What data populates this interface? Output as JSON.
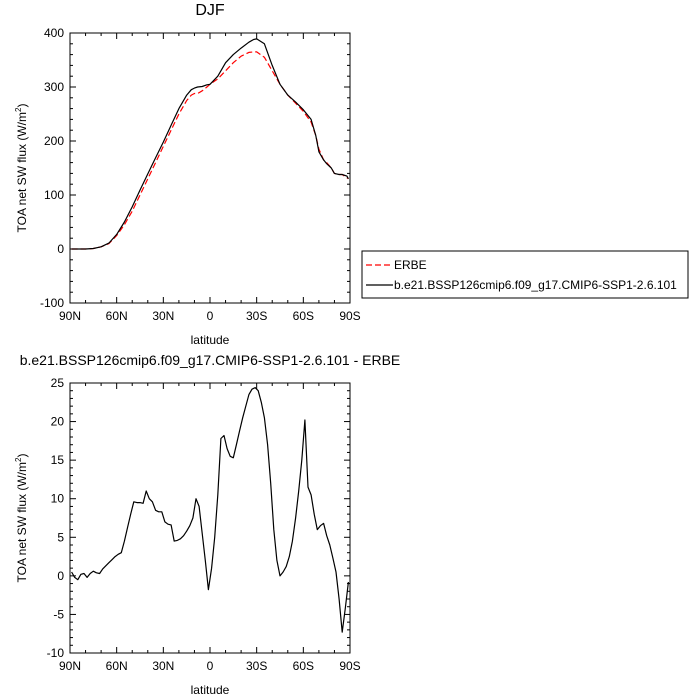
{
  "chart_data": [
    {
      "type": "line",
      "title": "DJF",
      "xlabel": "latitude",
      "ylabel": "TOA net SW flux (W/m²)",
      "ylabel_main": "TOA net SW flux (W/m",
      "ylabel_sup": "2",
      "ylabel_tail": ")",
      "xlim": [
        90,
        -90
      ],
      "ylim": [
        -100,
        400
      ],
      "xticks": [
        90,
        60,
        30,
        0,
        -30,
        -60,
        -90
      ],
      "xtick_labels": [
        "90N",
        "60N",
        "30N",
        "0",
        "30S",
        "60S",
        "90S"
      ],
      "yticks": [
        -100,
        0,
        100,
        200,
        300,
        400
      ],
      "ytick_labels": [
        "-100",
        "0",
        "100",
        "200",
        "300",
        "400"
      ],
      "legend_position": "right",
      "series": [
        {
          "name": "ERBE",
          "color": "#ff0000",
          "dash": "dashed",
          "x": [
            89,
            85,
            80,
            75,
            70,
            65,
            60,
            55,
            50,
            45,
            40,
            35,
            30,
            25,
            20,
            15,
            12,
            10,
            8,
            5,
            2,
            0,
            -5,
            -10,
            -15,
            -20,
            -25,
            -28,
            -30,
            -35,
            -40,
            -45,
            -50,
            -55,
            -60,
            -65,
            -68,
            -70,
            -73,
            -75,
            -78,
            -80,
            -83,
            -85,
            -88,
            -89
          ],
          "y": [
            0,
            0,
            0,
            1,
            4,
            10,
            25,
            45,
            70,
            100,
            130,
            160,
            190,
            220,
            250,
            275,
            285,
            288,
            288,
            293,
            300,
            305,
            315,
            330,
            345,
            357,
            364,
            365,
            365,
            355,
            330,
            305,
            285,
            270,
            255,
            235,
            210,
            185,
            165,
            160,
            150,
            140,
            138,
            138,
            132,
            130
          ]
        },
        {
          "name": "b.e21.BSSP126cmip6.f09_g17.CMIP6-SSP1-2.6.101",
          "color": "#000000",
          "dash": "solid",
          "x": [
            89,
            85,
            80,
            75,
            70,
            65,
            60,
            55,
            50,
            45,
            40,
            35,
            30,
            25,
            20,
            15,
            12,
            10,
            8,
            5,
            2,
            0,
            -5,
            -10,
            -15,
            -20,
            -25,
            -28,
            -30,
            -35,
            -40,
            -45,
            -50,
            -55,
            -60,
            -65,
            -68,
            -70,
            -73,
            -75,
            -78,
            -80,
            -83,
            -85,
            -88,
            -89
          ],
          "y": [
            0,
            0,
            0,
            1,
            4,
            11,
            27,
            50,
            78,
            109,
            139,
            169,
            198,
            229,
            260,
            285,
            295,
            298,
            300,
            301,
            304,
            305,
            320,
            345,
            360,
            372,
            383,
            388,
            389,
            380,
            340,
            305,
            285,
            272,
            258,
            240,
            210,
            180,
            165,
            158,
            150,
            140,
            138,
            138,
            135,
            130
          ]
        }
      ]
    },
    {
      "type": "line",
      "title": "b.e21.BSSP126cmip6.f09_g17.CMIP6-SSP1-2.6.101 - ERBE",
      "xlabel": "latitude",
      "ylabel": "TOA net SW flux (W/m²)",
      "ylabel_main": "TOA net SW flux (W/m",
      "ylabel_sup": "2",
      "ylabel_tail": ")",
      "xlim": [
        90,
        -90
      ],
      "ylim": [
        -10,
        25
      ],
      "xticks": [
        90,
        60,
        30,
        0,
        -30,
        -60,
        -90
      ],
      "xtick_labels": [
        "90N",
        "60N",
        "30N",
        "0",
        "30S",
        "60S",
        "90S"
      ],
      "yticks": [
        -10,
        -5,
        0,
        5,
        10,
        15,
        20,
        25
      ],
      "ytick_labels": [
        "-10",
        "-5",
        "0",
        "5",
        "10",
        "15",
        "20",
        "25"
      ],
      "series": [
        {
          "color": "#000000",
          "dash": "solid",
          "x": [
            89,
            87,
            85,
            83,
            81,
            79,
            77,
            75,
            73,
            71,
            69,
            67,
            65,
            63,
            61,
            59,
            57,
            55,
            53,
            51,
            49,
            47,
            45,
            43,
            41,
            39,
            37,
            35,
            33,
            31,
            29,
            27,
            25,
            23,
            21,
            19,
            17,
            15,
            13,
            11,
            9,
            7,
            5,
            3,
            1,
            -1,
            -3,
            -5,
            -7,
            -9,
            -11,
            -13,
            -15,
            -17,
            -19,
            -21,
            -23,
            -25,
            -27,
            -29,
            -31,
            -33,
            -35,
            -37,
            -39,
            -41,
            -43,
            -45,
            -47,
            -49,
            -51,
            -53,
            -55,
            -57,
            -59,
            -61,
            -63,
            -65,
            -67,
            -69,
            -71,
            -73,
            -75,
            -77,
            -79,
            -81,
            -83,
            -85,
            -87,
            -89
          ],
          "y": [
            0.5,
            -0.2,
            -0.5,
            0.2,
            0.3,
            -0.2,
            0.3,
            0.6,
            0.4,
            0.3,
            0.9,
            1.3,
            1.7,
            2.1,
            2.5,
            2.8,
            3.0,
            4.5,
            6.3,
            8.0,
            9.6,
            9.5,
            9.5,
            9.4,
            11.0,
            10.0,
            9.6,
            8.5,
            8.3,
            8.3,
            7.0,
            6.7,
            6.6,
            4.5,
            4.6,
            4.8,
            5.2,
            5.8,
            6.5,
            7.5,
            10.0,
            9.0,
            5.5,
            2.0,
            -1.8,
            1.0,
            5.0,
            10.5,
            17.8,
            18.2,
            16.5,
            15.5,
            15.3,
            17.0,
            18.8,
            20.5,
            22.0,
            23.5,
            24.2,
            24.4,
            24.0,
            22.5,
            20.5,
            17.0,
            12.0,
            6.0,
            2.0,
            0.0,
            0.5,
            1.2,
            2.5,
            4.5,
            7.5,
            11.0,
            15.0,
            20.2,
            11.5,
            10.5,
            8.0,
            6.0,
            6.5,
            6.8,
            5.2,
            4.0,
            2.3,
            0.5,
            -3.0,
            -7.3,
            -4.2,
            -0.8
          ]
        }
      ]
    }
  ]
}
